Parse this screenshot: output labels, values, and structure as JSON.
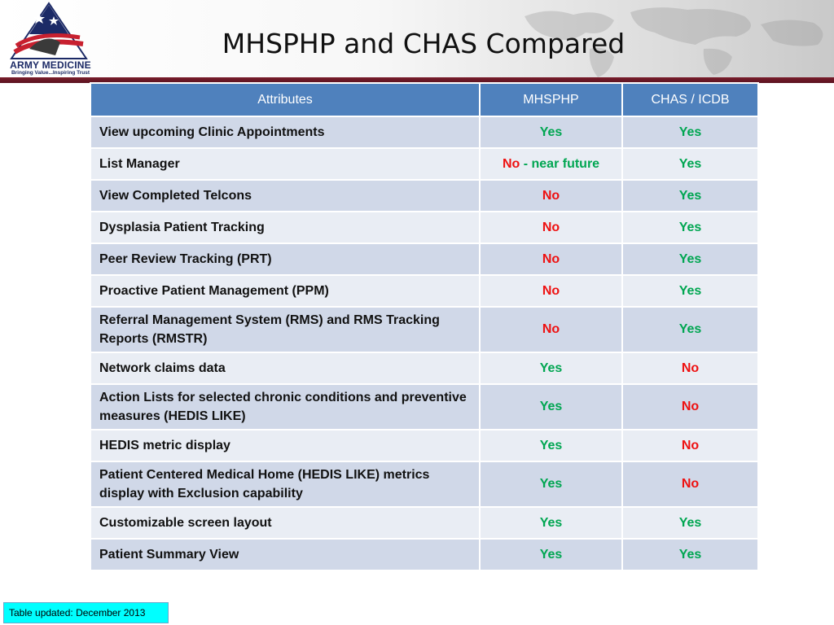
{
  "header": {
    "title": "MHSPHP and CHAS Compared",
    "logo_name": "ARMY MEDICINE",
    "logo_tagline": "Bringing Value...Inspiring Trust"
  },
  "colors": {
    "header_row": "#4f81bd",
    "row_odd": "#d0d8e8",
    "row_even": "#e9edf4",
    "yes": "#00a651",
    "no": "#ee1111",
    "accent_bar": "#7a1e2c",
    "note_bg": "#00ffff"
  },
  "table": {
    "columns": [
      "Attributes",
      "MHSPHP",
      "CHAS / ICDB"
    ],
    "rows": [
      {
        "attribute": "View upcoming Clinic Appointments",
        "mhsphp": "Yes",
        "chas": "Yes"
      },
      {
        "attribute": "List Manager",
        "mhsphp": "No",
        "mhsphp_note": "- near future",
        "chas": "Yes"
      },
      {
        "attribute": "View Completed Telcons",
        "mhsphp": "No",
        "chas": "Yes"
      },
      {
        "attribute": "Dysplasia Patient Tracking",
        "mhsphp": "No",
        "chas": "Yes"
      },
      {
        "attribute": "Peer Review Tracking (PRT)",
        "mhsphp": "No",
        "chas": "Yes"
      },
      {
        "attribute": "Proactive Patient Management (PPM)",
        "mhsphp": "No",
        "chas": "Yes"
      },
      {
        "attribute": "Referral Management System (RMS) and RMS Tracking Reports  (RMSTR)",
        "mhsphp": "No",
        "chas": "Yes"
      },
      {
        "attribute": "Network claims data",
        "mhsphp": "Yes",
        "chas": "No"
      },
      {
        "attribute": "Action Lists for selected chronic conditions and preventive measures (HEDIS LIKE)",
        "mhsphp": "Yes",
        "chas": "No"
      },
      {
        "attribute": "HEDIS metric display",
        "mhsphp": "Yes",
        "chas": "No"
      },
      {
        "attribute": "Patient Centered Medical Home (HEDIS LIKE) metrics display with Exclusion capability",
        "mhsphp": "Yes",
        "chas": "No"
      },
      {
        "attribute": "Customizable screen layout",
        "mhsphp": "Yes",
        "chas": "Yes"
      },
      {
        "attribute": "Patient Summary View",
        "mhsphp": "Yes",
        "chas": "Yes"
      }
    ]
  },
  "footer": {
    "note": "Table updated:  December 2013"
  }
}
